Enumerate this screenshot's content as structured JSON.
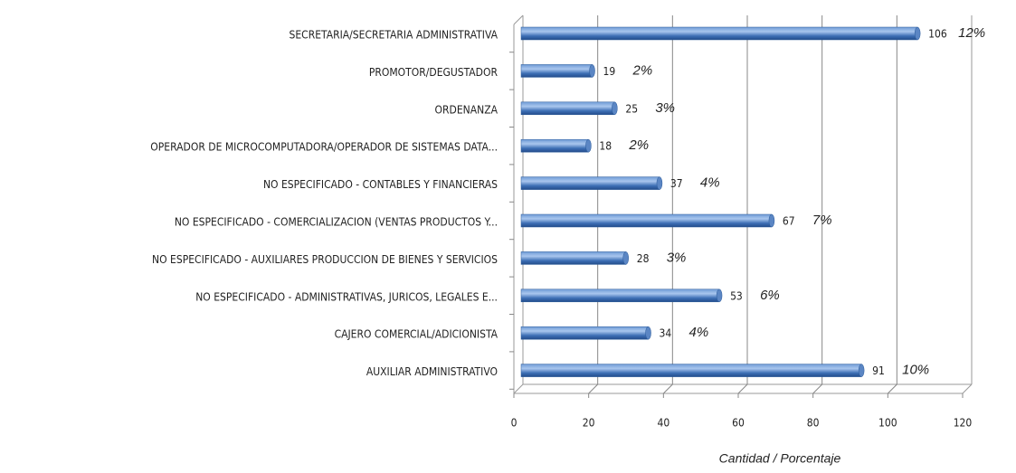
{
  "chart_data": {
    "type": "bar",
    "orientation": "horizontal",
    "x_label": "Cantidad / Porcentaje",
    "categories": [
      "SECRETARIA/SECRETARIA ADMINISTRATIVA",
      "PROMOTOR/DEGUSTADOR",
      "ORDENANZA",
      "OPERADOR DE MICROCOMPUTADORA/OPERADOR DE SISTEMAS DATA...",
      "NO ESPECIFICADO - CONTABLES Y FINANCIERAS",
      "NO ESPECIFICADO - COMERCIALIZACION (VENTAS PRODUCTOS Y...",
      "NO ESPECIFICADO - AUXILIARES PRODUCCION DE BIENES Y SERVICIOS",
      "NO ESPECIFICADO - ADMINISTRATIVAS, JURICOS, LEGALES E...",
      "CAJERO COMERCIAL/ADICIONISTA",
      "AUXILIAR ADMINISTRATIVO"
    ],
    "values": [
      106,
      19,
      25,
      18,
      37,
      67,
      28,
      53,
      34,
      91
    ],
    "percents": [
      12,
      2,
      3,
      2,
      4,
      7,
      3,
      6,
      4,
      10
    ],
    "percent_labels": [
      "12%",
      "2%",
      "3%",
      "2%",
      "4%",
      "7%",
      "3%",
      "6%",
      "4%",
      "10%"
    ],
    "color": "#4f81bd",
    "xlim": [
      0,
      120
    ],
    "xticks": [
      0,
      20,
      40,
      60,
      80,
      100,
      120
    ],
    "grid": true
  }
}
